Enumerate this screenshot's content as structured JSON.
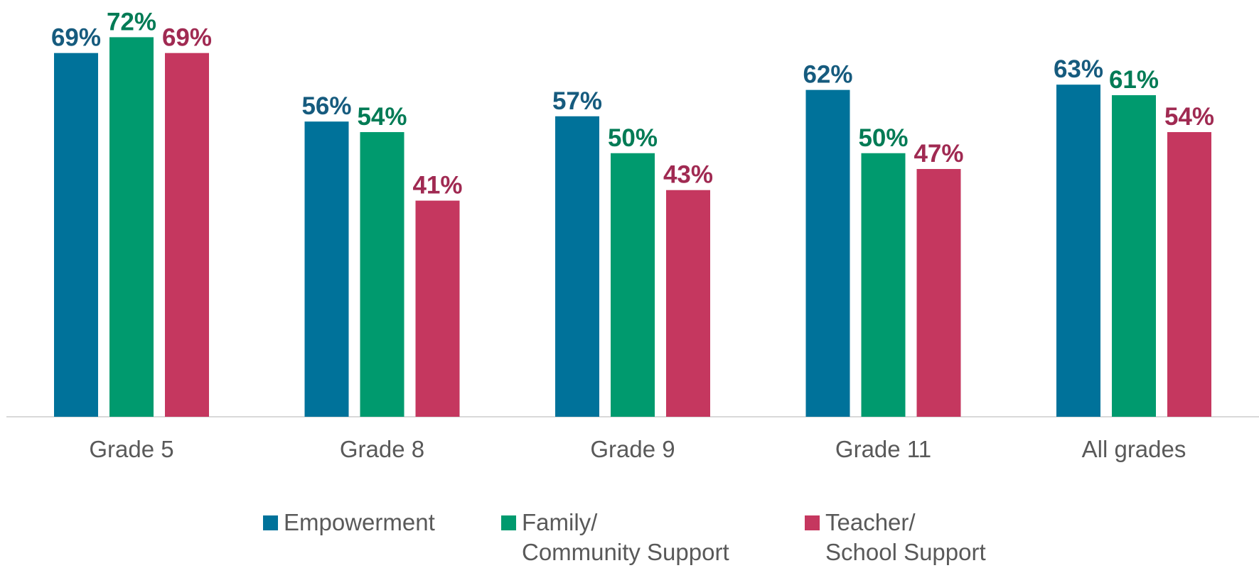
{
  "chart_data": {
    "type": "bar",
    "categories": [
      "Grade 5",
      "Grade 8",
      "Grade 9",
      "Grade 11",
      "All grades"
    ],
    "series": [
      {
        "name": "Empowerment",
        "color": "#00729a",
        "label_color": "#165b7e",
        "values": [
          69,
          56,
          57,
          62,
          63
        ],
        "value_labels": [
          "69%",
          "56%",
          "57%",
          "62%",
          "63%"
        ]
      },
      {
        "name": "Family/\nCommunity Support",
        "color": "#009a6e",
        "label_color": "#007b55",
        "values": [
          72,
          54,
          50,
          50,
          61
        ],
        "value_labels": [
          "72%",
          "54%",
          "50%",
          "50%",
          "61%"
        ]
      },
      {
        "name": "Teacher/\nSchool Support",
        "color": "#c5375f",
        "label_color": "#a02a52",
        "values": [
          69,
          41,
          43,
          47,
          54
        ],
        "value_labels": [
          "69%",
          "41%",
          "43%",
          "47%",
          "54%"
        ]
      }
    ],
    "ylim": [
      0,
      80
    ],
    "legend": "bottom"
  }
}
